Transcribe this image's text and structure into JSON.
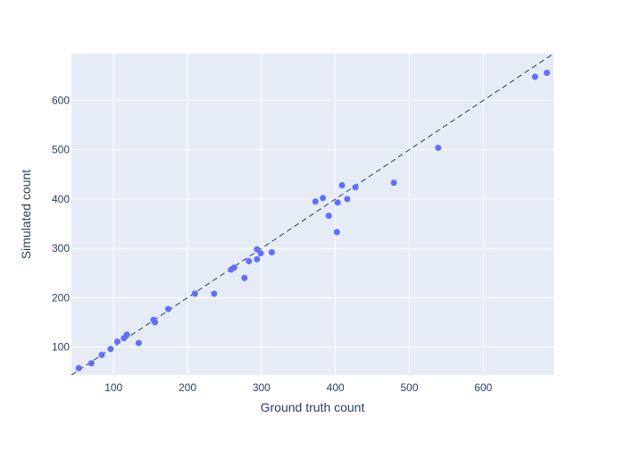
{
  "chart_data": {
    "type": "scatter",
    "xlabel": "Ground truth count",
    "ylabel": "Simulated count",
    "xlim": [
      43,
      695
    ],
    "ylim": [
      43,
      695
    ],
    "xticks": [
      100,
      200,
      300,
      400,
      500,
      600
    ],
    "yticks": [
      100,
      200,
      300,
      400,
      500,
      600
    ],
    "grid": true,
    "reference_line": "y = x",
    "colors": {
      "plot_background": "#e5ecf6",
      "grid": "#ffffff",
      "marker": "#636efa",
      "reference_line": "#2a3f5f",
      "text": "#2a3f5f"
    },
    "points": [
      {
        "x": 53,
        "y": 57
      },
      {
        "x": 70,
        "y": 67
      },
      {
        "x": 84,
        "y": 84
      },
      {
        "x": 96,
        "y": 96
      },
      {
        "x": 105,
        "y": 111
      },
      {
        "x": 114,
        "y": 118
      },
      {
        "x": 118,
        "y": 125
      },
      {
        "x": 134,
        "y": 108
      },
      {
        "x": 154,
        "y": 155
      },
      {
        "x": 156,
        "y": 150
      },
      {
        "x": 174,
        "y": 177
      },
      {
        "x": 210,
        "y": 208
      },
      {
        "x": 236,
        "y": 208
      },
      {
        "x": 259,
        "y": 257
      },
      {
        "x": 263,
        "y": 261
      },
      {
        "x": 277,
        "y": 240
      },
      {
        "x": 283,
        "y": 274
      },
      {
        "x": 294,
        "y": 278
      },
      {
        "x": 294,
        "y": 298
      },
      {
        "x": 299,
        "y": 290
      },
      {
        "x": 314,
        "y": 292
      },
      {
        "x": 373,
        "y": 395
      },
      {
        "x": 383,
        "y": 402
      },
      {
        "x": 391,
        "y": 366
      },
      {
        "x": 402,
        "y": 333
      },
      {
        "x": 403,
        "y": 393
      },
      {
        "x": 409,
        "y": 428
      },
      {
        "x": 416,
        "y": 400
      },
      {
        "x": 427,
        "y": 424
      },
      {
        "x": 479,
        "y": 433
      },
      {
        "x": 539,
        "y": 504
      },
      {
        "x": 670,
        "y": 648
      },
      {
        "x": 686,
        "y": 656
      }
    ]
  }
}
